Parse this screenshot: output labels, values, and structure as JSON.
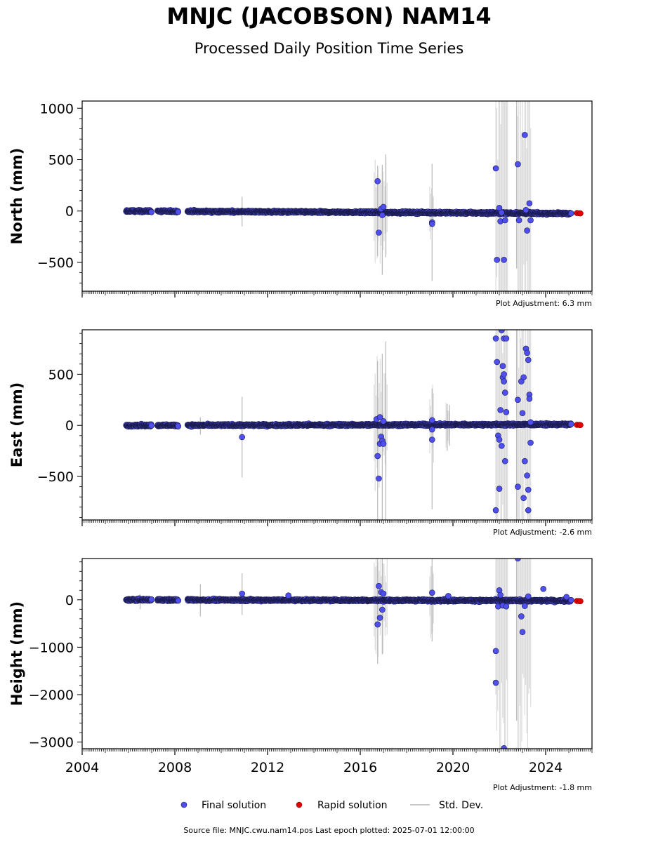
{
  "title": "MNJC (JACOBSON) NAM14",
  "subtitle": "Processed Daily Position Time Series",
  "footer": "Source file: MNJC.cwu.nam14.pos  Last epoch plotted: 2025-07-01 12:00:00",
  "legend": {
    "final": "Final solution",
    "rapid": "Rapid solution",
    "std": "Std. Dev."
  },
  "colors": {
    "final_fill": "#4f4fef",
    "final_edge": "#1a1a4a",
    "rapid": "#e00000",
    "std": "#b8b8b8"
  },
  "chart_data": [
    {
      "type": "scatter",
      "ylabel": "North (mm)",
      "adjustment": "Plot Adjustment: 6.3 mm",
      "xlim": [
        2004,
        2026
      ],
      "ylim": [
        -780,
        1070
      ],
      "yticks": [
        -500,
        0,
        500,
        1000
      ],
      "ytick_labels": [
        "−500",
        "0",
        "500",
        "1000"
      ],
      "base": 0,
      "slope": -1.2,
      "noise": 7,
      "gaps": [
        [
          2007.0,
          2007.25
        ],
        [
          2008.15,
          2008.55
        ]
      ],
      "first_epoch": 2005.9,
      "last_final": 2025.1,
      "rapid": [
        [
          2025.35,
          -20
        ],
        [
          2025.45,
          -22
        ],
        [
          2025.5,
          -23
        ]
      ],
      "bands": [
        [
          2016.6,
          2017.2,
          0.25
        ],
        [
          2019.0,
          2019.2,
          0.15
        ],
        [
          2021.85,
          2022.4,
          1.0
        ],
        [
          2022.8,
          2023.4,
          1.0
        ]
      ],
      "std_spikes": [
        [
          2010.9,
          -150,
          140
        ],
        [
          2016.75,
          -440,
          440
        ],
        [
          2016.95,
          -620,
          450
        ],
        [
          2017.1,
          -450,
          550
        ],
        [
          2019.1,
          -680,
          460
        ],
        [
          2022.75,
          -560,
          1070
        ]
      ],
      "outliers": [
        [
          2016.75,
          290
        ],
        [
          2016.8,
          -210
        ],
        [
          2016.9,
          20
        ],
        [
          2016.95,
          -40
        ],
        [
          2017.0,
          40
        ],
        [
          2019.1,
          -110
        ],
        [
          2019.1,
          -125
        ],
        [
          2021.85,
          415
        ],
        [
          2021.9,
          -475
        ],
        [
          2022.0,
          30
        ],
        [
          2022.05,
          -100
        ],
        [
          2022.1,
          -15
        ],
        [
          2022.2,
          -475
        ],
        [
          2022.25,
          -90
        ],
        [
          2022.8,
          455
        ],
        [
          2022.85,
          -90
        ],
        [
          2023.1,
          740
        ],
        [
          2023.2,
          -190
        ],
        [
          2023.3,
          75
        ],
        [
          2023.35,
          -90
        ],
        [
          2023.15,
          10
        ]
      ]
    },
    {
      "type": "scatter",
      "ylabel": "East (mm)",
      "adjustment": "Plot Adjustment: -2.6 mm",
      "xlim": [
        2004,
        2026
      ],
      "ylim": [
        -925,
        935
      ],
      "yticks": [
        -500,
        0,
        500
      ],
      "ytick_labels": [
        "−500",
        "0",
        "500"
      ],
      "base": 0,
      "slope": 0.5,
      "noise": 7,
      "gaps": [
        [
          2007.0,
          2007.25
        ],
        [
          2008.15,
          2008.55
        ]
      ],
      "first_epoch": 2005.9,
      "last_final": 2025.1,
      "rapid": [
        [
          2025.35,
          5
        ],
        [
          2025.45,
          4
        ],
        [
          2025.5,
          3
        ]
      ],
      "bands": [
        [
          2016.6,
          2017.2,
          0.3
        ],
        [
          2019.0,
          2019.2,
          0.2
        ],
        [
          2019.7,
          2019.9,
          0.12
        ],
        [
          2021.85,
          2022.4,
          1.0
        ],
        [
          2022.8,
          2023.4,
          1.0
        ]
      ],
      "std_spikes": [
        [
          2009.1,
          -90,
          80
        ],
        [
          2010.9,
          -510,
          280
        ],
        [
          2016.75,
          -925,
          630
        ],
        [
          2016.95,
          -925,
          700
        ],
        [
          2017.1,
          -925,
          820
        ],
        [
          2019.1,
          -820,
          360
        ],
        [
          2019.75,
          -250,
          210
        ],
        [
          2019.85,
          -200,
          200
        ],
        [
          2022.75,
          -925,
          935
        ]
      ],
      "outliers": [
        [
          2010.9,
          -115
        ],
        [
          2016.75,
          -300
        ],
        [
          2016.8,
          -520
        ],
        [
          2016.85,
          -180
        ],
        [
          2016.9,
          -110
        ],
        [
          2016.95,
          -150
        ],
        [
          2017.0,
          -180
        ],
        [
          2016.7,
          60
        ],
        [
          2016.85,
          80
        ],
        [
          2017.0,
          40
        ],
        [
          2019.1,
          -140
        ],
        [
          2019.1,
          50
        ],
        [
          2019.1,
          -40
        ],
        [
          2021.85,
          850
        ],
        [
          2021.9,
          620
        ],
        [
          2021.85,
          -830
        ],
        [
          2022.0,
          -620
        ],
        [
          2021.95,
          -100
        ],
        [
          2022.0,
          -140
        ],
        [
          2022.05,
          150
        ],
        [
          2022.1,
          930
        ],
        [
          2022.15,
          470
        ],
        [
          2022.15,
          580
        ],
        [
          2022.2,
          430
        ],
        [
          2022.2,
          850
        ],
        [
          2022.25,
          320
        ],
        [
          2022.25,
          -350
        ],
        [
          2022.3,
          130
        ],
        [
          2022.1,
          -200
        ],
        [
          2022.2,
          500
        ],
        [
          2022.3,
          850
        ],
        [
          2022.8,
          250
        ],
        [
          2022.8,
          -600
        ],
        [
          2022.95,
          430
        ],
        [
          2023.05,
          470
        ],
        [
          2023.05,
          -710
        ],
        [
          2023.1,
          -350
        ],
        [
          2023.15,
          750
        ],
        [
          2023.2,
          710
        ],
        [
          2023.25,
          -630
        ],
        [
          2023.25,
          640
        ],
        [
          2023.3,
          300
        ],
        [
          2023.3,
          260
        ],
        [
          2023.35,
          -170
        ],
        [
          2023.2,
          -490
        ],
        [
          2023.25,
          -830
        ],
        [
          2023.0,
          120
        ],
        [
          2023.35,
          30
        ]
      ]
    },
    {
      "type": "scatter",
      "ylabel": "Height (mm)",
      "adjustment": "Plot Adjustment: -1.8 mm",
      "xlim": [
        2004,
        2026
      ],
      "ylim": [
        -3140,
        870
      ],
      "yticks": [
        -3000,
        -2000,
        -1000,
        0
      ],
      "ytick_labels": [
        "−3000",
        "−2000",
        "−1000",
        "0"
      ],
      "base": 0,
      "slope": -1,
      "noise": 15,
      "gaps": [
        [
          2007.0,
          2007.25
        ],
        [
          2008.15,
          2008.55
        ]
      ],
      "first_epoch": 2005.9,
      "last_final": 2025.1,
      "rapid": [
        [
          2025.35,
          -25
        ],
        [
          2025.45,
          -28
        ],
        [
          2025.5,
          -30
        ]
      ],
      "bands": [
        [
          2016.6,
          2017.2,
          0.3
        ],
        [
          2019.0,
          2019.2,
          0.2
        ],
        [
          2021.85,
          2022.4,
          1.0
        ],
        [
          2022.8,
          2023.4,
          1.0
        ]
      ],
      "std_spikes": [
        [
          2006.5,
          -200,
          120
        ],
        [
          2009.1,
          -350,
          330
        ],
        [
          2010.9,
          -320,
          560
        ],
        [
          2016.75,
          -1350,
          870
        ],
        [
          2016.95,
          -1150,
          870
        ],
        [
          2019.1,
          -880,
          870
        ],
        [
          2022.75,
          -2550,
          870
        ]
      ],
      "outliers": [
        [
          2010.9,
          130
        ],
        [
          2012.9,
          90
        ],
        [
          2016.75,
          -520
        ],
        [
          2016.8,
          290
        ],
        [
          2016.85,
          -380
        ],
        [
          2016.9,
          160
        ],
        [
          2016.95,
          -210
        ],
        [
          2017.0,
          130
        ],
        [
          2019.1,
          150
        ],
        [
          2019.8,
          80
        ],
        [
          2021.85,
          -1080
        ],
        [
          2021.85,
          -1750
        ],
        [
          2021.95,
          -140
        ],
        [
          2022.0,
          200
        ],
        [
          2022.05,
          100
        ],
        [
          2022.15,
          -120
        ],
        [
          2022.2,
          -3130
        ],
        [
          2022.3,
          -140
        ],
        [
          2022.8,
          870
        ],
        [
          2022.95,
          -350
        ],
        [
          2023.0,
          -680
        ],
        [
          2023.1,
          -130
        ],
        [
          2023.25,
          70
        ],
        [
          2023.9,
          230
        ],
        [
          2024.9,
          60
        ]
      ]
    }
  ]
}
